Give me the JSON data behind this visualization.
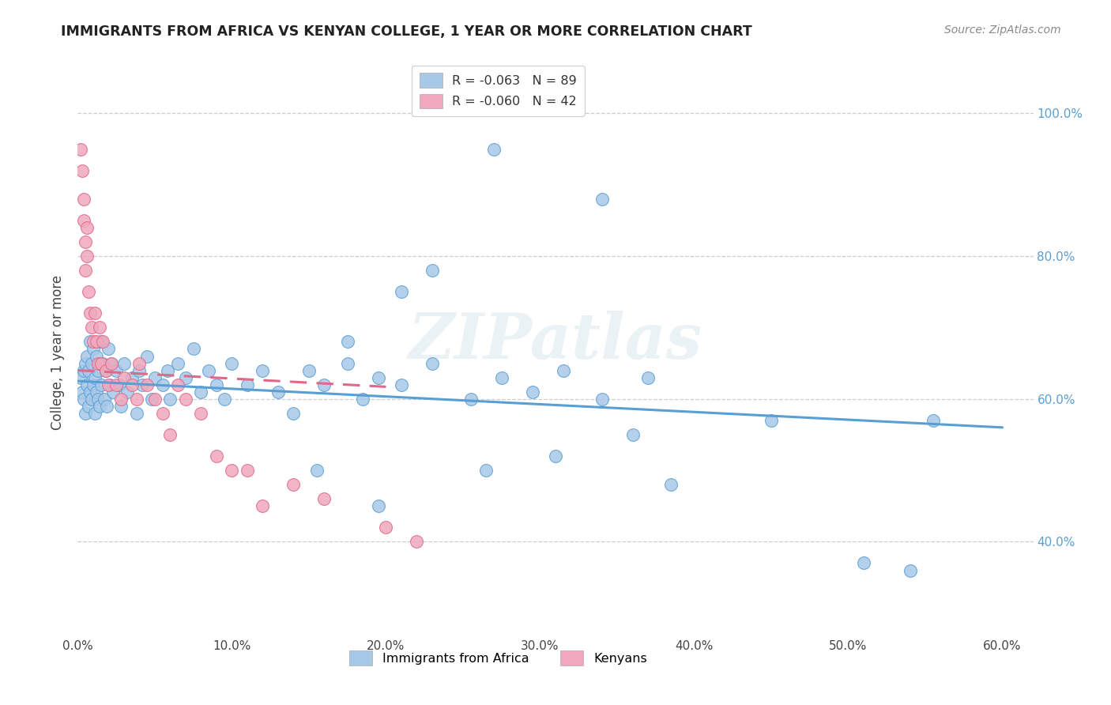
{
  "title": "IMMIGRANTS FROM AFRICA VS KENYAN COLLEGE, 1 YEAR OR MORE CORRELATION CHART",
  "source": "Source: ZipAtlas.com",
  "ylabel": "College, 1 year or more",
  "legend_entry1_r": "-0.063",
  "legend_entry1_n": "89",
  "legend_entry2_r": "-0.060",
  "legend_entry2_n": "42",
  "legend_label1": "Immigrants from Africa",
  "legend_label2": "Kenyans",
  "color_blue": "#a8c8e8",
  "color_pink": "#f0a8bc",
  "line_color_blue": "#5a9fd4",
  "line_color_pink": "#e06888",
  "watermark": "ZIPatlas",
  "xlim_min": 0.0,
  "xlim_max": 0.62,
  "ylim_min": 0.27,
  "ylim_max": 1.06,
  "blue_line_x0": 0.0,
  "blue_line_x1": 0.6,
  "blue_line_y0": 0.625,
  "blue_line_y1": 0.56,
  "pink_line_x0": 0.0,
  "pink_line_x1": 0.2,
  "pink_line_y0": 0.64,
  "pink_line_y1": 0.617,
  "blue_x": [
    0.002,
    0.003,
    0.004,
    0.004,
    0.005,
    0.005,
    0.006,
    0.006,
    0.007,
    0.007,
    0.008,
    0.008,
    0.009,
    0.009,
    0.01,
    0.01,
    0.011,
    0.011,
    0.012,
    0.012,
    0.013,
    0.013,
    0.014,
    0.014,
    0.015,
    0.015,
    0.016,
    0.017,
    0.018,
    0.019,
    0.02,
    0.021,
    0.022,
    0.023,
    0.025,
    0.027,
    0.028,
    0.03,
    0.032,
    0.035,
    0.038,
    0.04,
    0.042,
    0.045,
    0.048,
    0.05,
    0.055,
    0.058,
    0.06,
    0.065,
    0.07,
    0.075,
    0.08,
    0.085,
    0.09,
    0.095,
    0.1,
    0.11,
    0.12,
    0.13,
    0.14,
    0.15,
    0.16,
    0.175,
    0.185,
    0.195,
    0.21,
    0.23,
    0.255,
    0.275,
    0.295,
    0.315,
    0.34,
    0.36,
    0.37,
    0.385,
    0.31,
    0.265,
    0.195,
    0.155,
    0.175,
    0.21,
    0.34,
    0.45,
    0.51,
    0.54,
    0.555,
    0.23,
    0.27
  ],
  "blue_y": [
    0.63,
    0.61,
    0.64,
    0.6,
    0.65,
    0.58,
    0.66,
    0.62,
    0.64,
    0.59,
    0.68,
    0.61,
    0.65,
    0.6,
    0.67,
    0.62,
    0.63,
    0.58,
    0.66,
    0.61,
    0.64,
    0.6,
    0.65,
    0.59,
    0.68,
    0.62,
    0.65,
    0.6,
    0.64,
    0.59,
    0.67,
    0.62,
    0.65,
    0.61,
    0.64,
    0.62,
    0.59,
    0.65,
    0.61,
    0.63,
    0.58,
    0.64,
    0.62,
    0.66,
    0.6,
    0.63,
    0.62,
    0.64,
    0.6,
    0.65,
    0.63,
    0.67,
    0.61,
    0.64,
    0.62,
    0.6,
    0.65,
    0.62,
    0.64,
    0.61,
    0.58,
    0.64,
    0.62,
    0.65,
    0.6,
    0.63,
    0.62,
    0.65,
    0.6,
    0.63,
    0.61,
    0.64,
    0.6,
    0.55,
    0.63,
    0.48,
    0.52,
    0.5,
    0.45,
    0.5,
    0.68,
    0.75,
    0.88,
    0.57,
    0.37,
    0.36,
    0.57,
    0.78,
    0.95
  ],
  "pink_x": [
    0.002,
    0.003,
    0.004,
    0.004,
    0.005,
    0.005,
    0.006,
    0.006,
    0.007,
    0.008,
    0.009,
    0.01,
    0.011,
    0.012,
    0.013,
    0.014,
    0.015,
    0.016,
    0.018,
    0.02,
    0.022,
    0.025,
    0.028,
    0.03,
    0.035,
    0.038,
    0.04,
    0.045,
    0.05,
    0.055,
    0.06,
    0.065,
    0.07,
    0.08,
    0.09,
    0.1,
    0.11,
    0.12,
    0.14,
    0.16,
    0.2,
    0.22
  ],
  "pink_y": [
    0.95,
    0.92,
    0.88,
    0.85,
    0.82,
    0.78,
    0.84,
    0.8,
    0.75,
    0.72,
    0.7,
    0.68,
    0.72,
    0.68,
    0.65,
    0.7,
    0.65,
    0.68,
    0.64,
    0.62,
    0.65,
    0.62,
    0.6,
    0.63,
    0.62,
    0.6,
    0.65,
    0.62,
    0.6,
    0.58,
    0.55,
    0.62,
    0.6,
    0.58,
    0.52,
    0.5,
    0.5,
    0.45,
    0.48,
    0.46,
    0.42,
    0.4
  ]
}
